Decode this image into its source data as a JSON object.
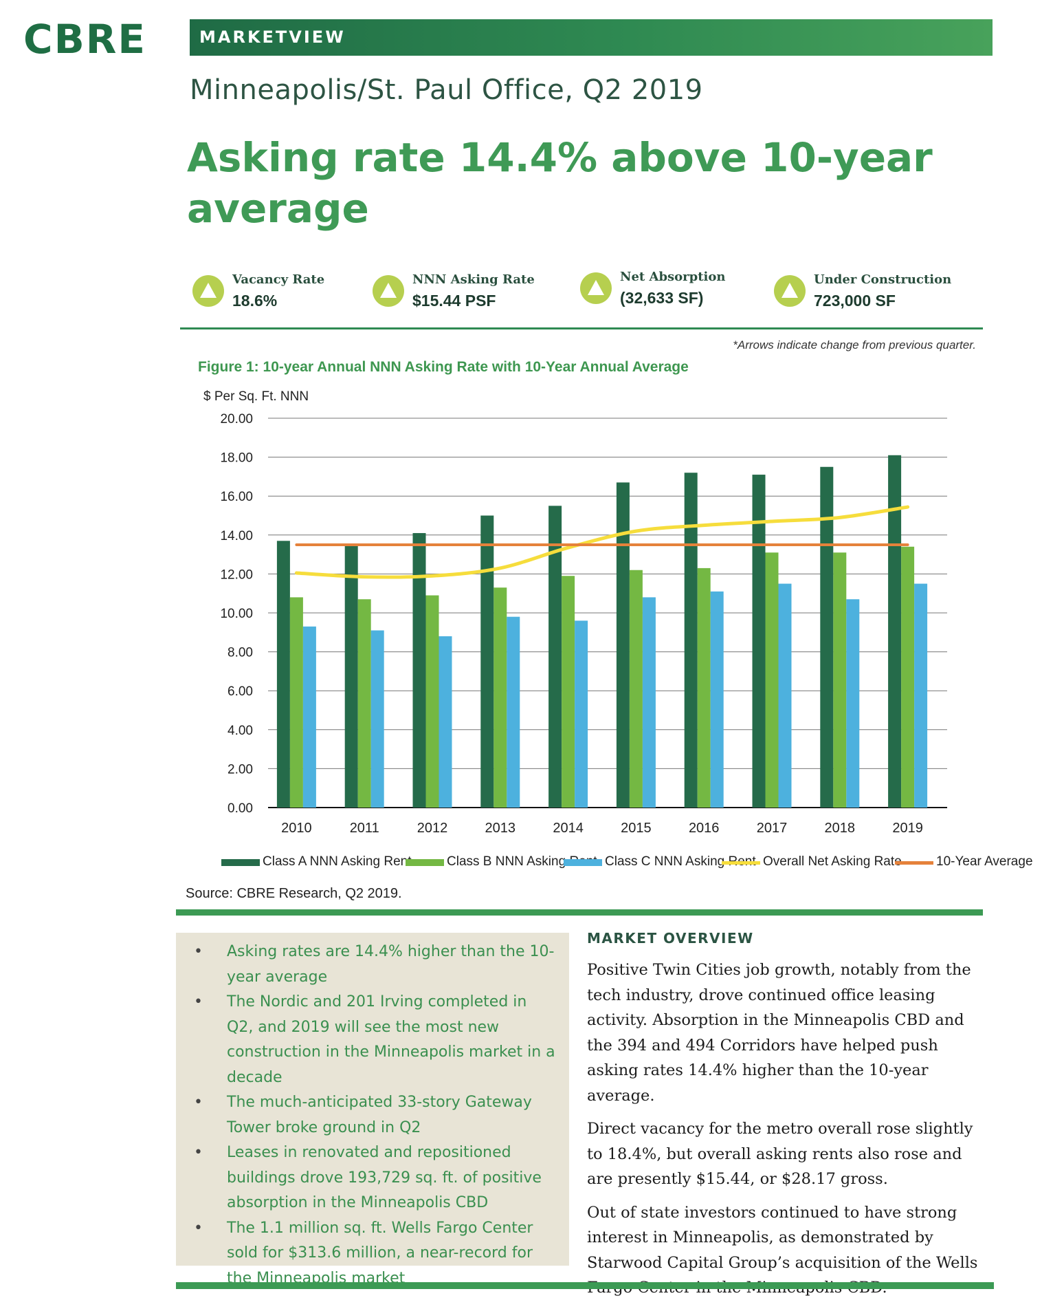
{
  "header": {
    "logo": "CBRE",
    "banner": "MARKETVIEW",
    "subtitle": "Minneapolis/St. Paul Office, Q2 2019",
    "headline": "Asking rate 14.4% above 10-year average"
  },
  "kpis": [
    {
      "label": "Vacancy Rate",
      "value": "18.6%",
      "icon": "arrow-up-icon",
      "direction": "up"
    },
    {
      "label": "NNN Asking Rate",
      "value": "$15.44 PSF",
      "icon": "arrow-up-icon",
      "direction": "up"
    },
    {
      "label": "Net Absorption",
      "value": "(32,633 SF)",
      "icon": "arrow-up-icon",
      "direction": "up"
    },
    {
      "label": "Under Construction",
      "value": "723,000 SF",
      "icon": "arrow-up-icon",
      "direction": "up"
    }
  ],
  "note": "*Arrows indicate change from previous quarter.",
  "figure": {
    "title": "Figure 1: 10-year Annual NNN Asking Rate with 10-Year Annual Average",
    "source": "Source: CBRE Research, Q2 2019."
  },
  "chart_data": {
    "type": "bar",
    "title": "Figure 1: 10-year Annual NNN Asking Rate with 10-Year Annual Average",
    "ylabel": "$ Per Sq. Ft. NNN",
    "xlabel": "",
    "ylim": [
      0,
      20
    ],
    "yticks": [
      "20.00",
      "18.00",
      "16.00",
      "14.00",
      "12.00",
      "10.00",
      "8.00",
      "6.00",
      "4.00",
      "2.00",
      "0.00"
    ],
    "ytick_values": [
      20,
      18,
      16,
      14,
      12,
      10,
      8,
      6,
      4,
      2,
      0
    ],
    "categories": [
      "2010",
      "2011",
      "2012",
      "2013",
      "2014",
      "2015",
      "2016",
      "2017",
      "2018",
      "2019"
    ],
    "grid": true,
    "series": [
      {
        "name": "Class A NNN Asking Rent",
        "kind": "bar",
        "color": "#256b4a",
        "values": [
          13.7,
          13.5,
          14.1,
          15.0,
          15.5,
          16.7,
          17.2,
          17.1,
          17.5,
          18.1
        ]
      },
      {
        "name": "Class B NNN Asking Rent",
        "kind": "bar",
        "color": "#74b843",
        "values": [
          10.8,
          10.7,
          10.9,
          11.3,
          11.9,
          12.2,
          12.3,
          13.1,
          13.1,
          13.4
        ]
      },
      {
        "name": "Class C NNN Asking Rent",
        "kind": "bar",
        "color": "#4db1de",
        "values": [
          9.3,
          9.1,
          8.8,
          9.8,
          9.6,
          10.8,
          11.1,
          11.5,
          10.7,
          11.5
        ]
      },
      {
        "name": "Overall Net Asking Rate",
        "kind": "line",
        "color": "#f6dd3c",
        "values": [
          12.05,
          11.85,
          11.9,
          12.3,
          13.35,
          14.2,
          14.5,
          14.7,
          14.9,
          15.44
        ]
      },
      {
        "name": "10-Year Average",
        "kind": "line",
        "color": "#e5823b",
        "values": [
          13.5,
          13.5,
          13.5,
          13.5,
          13.5,
          13.5,
          13.5,
          13.5,
          13.5,
          13.5
        ]
      }
    ],
    "legend": "bottom"
  },
  "bullets": [
    "Asking rates are 14.4% higher than the 10-year average",
    "The Nordic and 201 Irving completed in Q2, and 2019 will see the most new construction in the Minneapolis market in a decade",
    "The much-anticipated 33-story Gateway Tower broke ground in Q2",
    "Leases in renovated and repositioned buildings drove 193,729 sq. ft. of positive absorption in the Minneapolis CBD",
    "The 1.1 million sq. ft. Wells Fargo Center sold for $313.6 million, a near-record for the Minneapolis market"
  ],
  "overview": {
    "heading": "MARKET OVERVIEW",
    "paragraphs": [
      "Positive Twin Cities job growth, notably from the tech industry, drove continued office leasing activity. Absorption in the Minneapolis CBD and the 394 and 494 Corridors have helped push asking rates 14.4% higher than the 10-year average.",
      "Direct vacancy for the metro overall rose slightly to 18.4%, but overall asking rents also rose and are presently $15.44, or $28.17 gross.",
      "Out of state investors continued to have strong interest in Minneapolis, as demonstrated by Starwood Capital Group’s acquisition of the Wells Fargo Center in the Minneapolis CBD."
    ]
  }
}
